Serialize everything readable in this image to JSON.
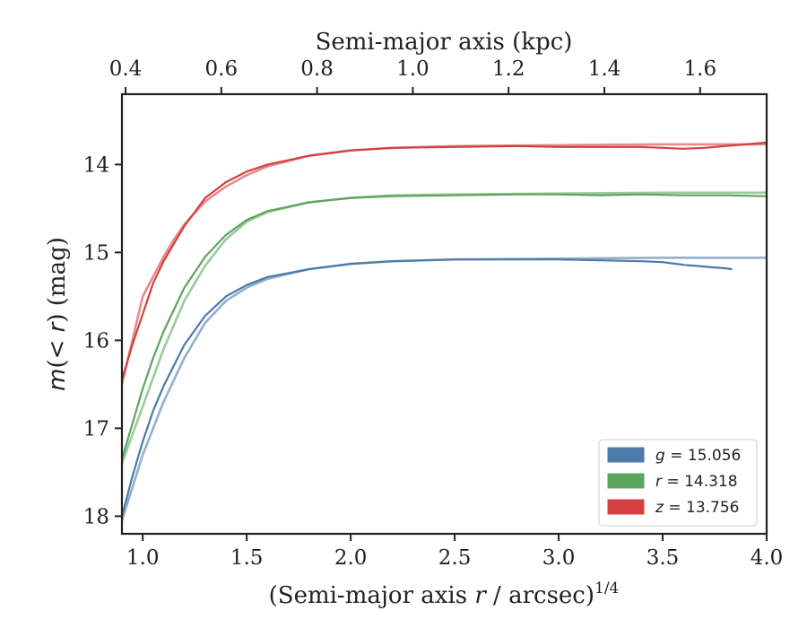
{
  "chart_data": {
    "type": "line",
    "xlabel_bottom": "(Semi-major axis r / arcsec)^1/4",
    "xlabel_top": "Semi-major axis (kpc)",
    "ylabel": "m(< r) (mag)",
    "xlim": [
      0.9,
      4.0
    ],
    "ylim": [
      18.2,
      13.2
    ],
    "y_inverted": true,
    "x_ticks": [
      "1.0",
      "1.5",
      "2.0",
      "2.5",
      "3.0",
      "3.5",
      "4.0"
    ],
    "top_ticks": [
      "0.4",
      "0.6",
      "0.8",
      "1.0",
      "1.2",
      "1.4",
      "1.6"
    ],
    "y_ticks": [
      "14",
      "15",
      "16",
      "17",
      "18"
    ],
    "legend": [
      {
        "band": "g",
        "value": "15.056",
        "color": "#4c7aa9"
      },
      {
        "band": "r",
        "value": "14.318",
        "color": "#5ca55c"
      },
      {
        "band": "z",
        "value": "13.756",
        "color": "#d43f40"
      }
    ],
    "legend_position": "lower-right",
    "series": [
      {
        "name": "g = 15.056",
        "color": "#4c7aa9",
        "observed": {
          "x": [
            0.9,
            0.95,
            1.0,
            1.05,
            1.1,
            1.2,
            1.3,
            1.4,
            1.5,
            1.6,
            1.8,
            2.0,
            2.2,
            2.5,
            2.8,
            3.0,
            3.2,
            3.4,
            3.5,
            3.6,
            3.7,
            3.75,
            3.8,
            3.83
          ],
          "y": [
            18.0,
            17.55,
            17.15,
            16.8,
            16.52,
            16.05,
            15.72,
            15.5,
            15.37,
            15.28,
            15.19,
            15.13,
            15.1,
            15.08,
            15.08,
            15.08,
            15.09,
            15.1,
            15.11,
            15.14,
            15.16,
            15.17,
            15.18,
            15.19
          ]
        },
        "model": {
          "x": [
            0.9,
            1.0,
            1.1,
            1.2,
            1.3,
            1.4,
            1.5,
            1.6,
            1.8,
            2.0,
            2.2,
            2.5,
            3.0,
            3.5,
            4.0
          ],
          "y": [
            18.05,
            17.3,
            16.7,
            16.2,
            15.8,
            15.55,
            15.4,
            15.3,
            15.19,
            15.13,
            15.1,
            15.08,
            15.07,
            15.06,
            15.06
          ]
        }
      },
      {
        "name": "r = 14.318",
        "color": "#5ca55c",
        "observed": {
          "x": [
            0.9,
            0.95,
            1.0,
            1.05,
            1.1,
            1.2,
            1.3,
            1.4,
            1.5,
            1.6,
            1.8,
            2.0,
            2.2,
            2.5,
            2.8,
            3.0,
            3.2,
            3.4,
            3.6,
            3.8,
            4.0
          ],
          "y": [
            17.35,
            16.95,
            16.55,
            16.2,
            15.9,
            15.4,
            15.05,
            14.8,
            14.63,
            14.53,
            14.43,
            14.38,
            14.36,
            14.35,
            14.34,
            14.34,
            14.35,
            14.34,
            14.35,
            14.35,
            14.36
          ]
        },
        "model": {
          "x": [
            0.9,
            1.0,
            1.1,
            1.2,
            1.3,
            1.4,
            1.5,
            1.6,
            1.8,
            2.0,
            2.2,
            2.5,
            3.0,
            3.5,
            4.0
          ],
          "y": [
            17.4,
            16.75,
            16.1,
            15.55,
            15.15,
            14.85,
            14.65,
            14.54,
            14.43,
            14.38,
            14.35,
            14.34,
            14.33,
            14.32,
            14.32
          ]
        }
      },
      {
        "name": "z = 13.756",
        "color": "#d43f40",
        "observed": {
          "x": [
            0.9,
            0.95,
            1.0,
            1.05,
            1.1,
            1.2,
            1.3,
            1.4,
            1.5,
            1.6,
            1.8,
            2.0,
            2.2,
            2.5,
            2.8,
            3.0,
            3.2,
            3.4,
            3.5,
            3.6,
            3.7,
            3.8,
            3.9,
            4.0
          ],
          "y": [
            16.45,
            16.05,
            15.7,
            15.35,
            15.1,
            14.7,
            14.38,
            14.2,
            14.08,
            14.0,
            13.9,
            13.84,
            13.81,
            13.8,
            13.79,
            13.8,
            13.8,
            13.8,
            13.81,
            13.82,
            13.81,
            13.79,
            13.77,
            13.75
          ]
        },
        "model": {
          "x": [
            0.9,
            1.0,
            1.1,
            1.15,
            1.2,
            1.3,
            1.4,
            1.5,
            1.6,
            1.8,
            2.0,
            2.2,
            2.5,
            3.0,
            3.5,
            4.0
          ],
          "y": [
            16.5,
            15.5,
            15.05,
            14.85,
            14.68,
            14.42,
            14.25,
            14.12,
            14.02,
            13.9,
            13.84,
            13.81,
            13.79,
            13.78,
            13.77,
            13.77
          ]
        }
      }
    ]
  }
}
